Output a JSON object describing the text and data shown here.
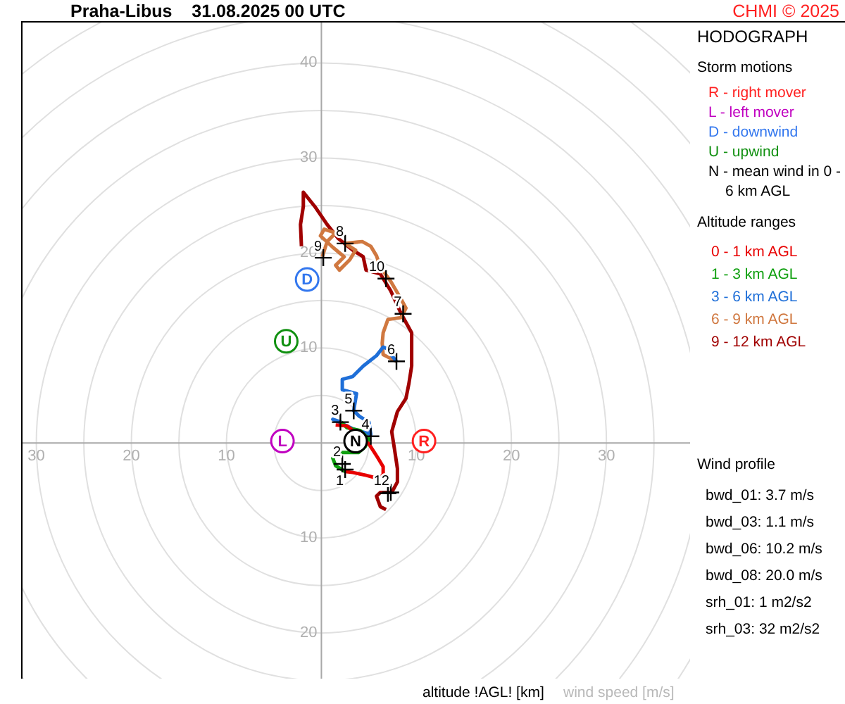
{
  "chart_data": {
    "type": "line",
    "title": "Praha-Libus    31.08.2025 00 UTC",
    "subtitle": "HODOGRAPH",
    "xlabel": "wind speed [m/s]",
    "annotations": [
      "CHMI © 2025",
      "Storm motions",
      "Altitude ranges",
      "Wind profile",
      "bwd_01: 3.7 m/s",
      "bwd_03: 1.1 m/s",
      "bwd_06: 10.2 m/s",
      "bwd_08: 20.0 m/s",
      "srh_01: 1 m2/s2",
      "srh_03: 32 m2/s2",
      "altitude !AGL! [km]",
      {
        "text": "R",
        "x": 10.8,
        "y": 0.2
      },
      {
        "text": "L",
        "x": -4.1,
        "y": 0.2
      },
      {
        "text": "D",
        "x": -1.5,
        "y": 17.2
      },
      {
        "text": "U",
        "x": -3.7,
        "y": 10.7
      },
      {
        "text": "N",
        "x": 3.6,
        "y": 0.2
      },
      {
        "text": "1",
        "x": 2.5,
        "y": -2.8
      },
      {
        "text": "2",
        "x": 2.2,
        "y": -2.2
      },
      {
        "text": "3",
        "x": 2.0,
        "y": 2.2
      },
      {
        "text": "4",
        "x": 5.2,
        "y": 0.7
      },
      {
        "text": "5",
        "x": 3.4,
        "y": 3.4
      },
      {
        "text": "6",
        "x": 7.9,
        "y": 8.6
      },
      {
        "text": "7",
        "x": 8.6,
        "y": 13.6
      },
      {
        "text": "8",
        "x": 2.5,
        "y": 21.0
      },
      {
        "text": "9",
        "x": 0.2,
        "y": 19.5
      },
      {
        "text": "10",
        "x": 6.8,
        "y": 17.3
      },
      {
        "text": "12",
        "x": 7.3,
        "y": -5.2
      }
    ],
    "xlim": [
      -31.6,
      38.8
    ],
    "ylim": [
      -24.8,
      44.4
    ],
    "xticks": [
      {
        "value": -30,
        "label": "30"
      },
      {
        "value": -20,
        "label": "20"
      },
      {
        "value": -10,
        "label": "10"
      },
      10,
      20,
      30
    ],
    "yticks": [
      {
        "value": -20,
        "label": "20"
      },
      {
        "value": -10,
        "label": "10"
      },
      10,
      20,
      30,
      40
    ],
    "legend": "right",
    "series": [
      {
        "type": "scatter",
        "name": "R - right mover",
        "color": "#ff2020",
        "marker": "circle",
        "x": [
          10.8
        ],
        "values": [
          0.2
        ]
      },
      {
        "type": "scatter",
        "name": "L - left mover",
        "color": "#c000c0",
        "marker": "circle",
        "x": [
          -4.1
        ],
        "values": [
          0.2
        ]
      },
      {
        "type": "scatter",
        "name": "D - downwind",
        "color": "#3377ee",
        "marker": "circle",
        "x": [
          -1.5
        ],
        "values": [
          17.2
        ]
      },
      {
        "type": "scatter",
        "name": "U - upwind",
        "color": "#109010",
        "marker": "circle",
        "x": [
          -3.7
        ],
        "values": [
          10.7
        ]
      },
      {
        "type": "scatter",
        "name": "N - mean wind in 0 - 6 km AGL",
        "color": "#000000",
        "marker": "circle",
        "x": [
          3.6
        ],
        "values": [
          0.2
        ]
      },
      {
        "name": "0 - 1 km AGL",
        "color": "#e80000",
        "x": [
          1.5,
          2.7,
          5.0,
          5.9,
          6.5,
          6.5,
          5.8,
          4.7,
          3.3,
          2.5
        ],
        "values": [
          1.9,
          1.8,
          -0.1,
          -1.5,
          -2.5,
          -3.4,
          -3.7,
          -3.4,
          -3.1,
          -3.0
        ]
      },
      {
        "name": "1 - 3 km AGL",
        "color": "#10a010",
        "x": [
          2.5,
          1.5,
          1.2,
          1.8,
          2.8,
          3.9,
          4.6,
          5.0,
          4.1,
          2.7,
          2.1
        ],
        "values": [
          -3.0,
          -2.4,
          -1.6,
          -1.0,
          -1.0,
          -1.0,
          -0.4,
          0.4,
          1.3,
          1.6,
          2.2
        ]
      },
      {
        "name": "3 - 6 km AGL",
        "color": "#1f6fd8",
        "x": [
          2.1,
          1.2,
          3.3,
          5.2,
          5.0,
          4.0,
          3.4,
          3.6,
          3.7,
          2.2,
          2.2,
          3.3,
          4.4,
          5.8,
          6.5,
          7.0,
          7.4,
          7.9
        ],
        "values": [
          2.2,
          2.5,
          1.5,
          0.9,
          2.2,
          2.8,
          3.4,
          4.6,
          5.2,
          5.6,
          6.7,
          7.0,
          8.1,
          9.2,
          10.1,
          9.9,
          9.2,
          8.6
        ]
      },
      {
        "name": "6 - 9 km AGL",
        "color": "#d07840",
        "x": [
          7.9,
          6.5,
          6.4,
          6.5,
          7.0,
          8.4,
          8.9,
          8.3,
          7.3,
          6.2,
          5.8,
          5.2,
          4.3,
          2.5,
          3.6,
          3.0,
          1.9,
          1.5,
          2.4,
          1.2,
          -0.1,
          0.3,
          1.5,
          0.6,
          0.1
        ],
        "values": [
          8.6,
          9.3,
          10.5,
          11.6,
          13.0,
          13.2,
          14.2,
          15.3,
          17.0,
          18.5,
          19.7,
          20.7,
          21.2,
          21.0,
          20.3,
          19.3,
          18.2,
          18.7,
          19.6,
          20.6,
          21.8,
          22.5,
          22.1,
          21.2,
          19.6
        ]
      },
      {
        "name": "9 - 12 km AGL",
        "color": "#a00000",
        "x": [
          -2.1,
          -2.2,
          -1.9,
          -1.9,
          -0.7,
          0.6,
          1.8,
          3.3,
          4.4,
          4.7,
          6.2,
          7.3,
          8.4,
          9.5,
          9.5,
          9.2,
          8.9,
          8.0,
          7.4,
          7.7,
          8.0,
          8.0,
          7.4,
          6.2,
          5.8,
          6.2,
          6.8
        ],
        "values": [
          20.7,
          23.0,
          24.9,
          26.4,
          24.9,
          23.0,
          21.5,
          20.3,
          19.6,
          18.2,
          17.8,
          16.0,
          13.6,
          11.6,
          8.1,
          6.2,
          4.7,
          3.3,
          1.2,
          -0.7,
          -2.7,
          -4.1,
          -5.2,
          -5.2,
          -5.6,
          -6.7,
          -7.0
        ]
      },
      {
        "type": "scatter",
        "color": "#000000",
        "marker": "cross",
        "x": [
          2.5,
          2.2,
          2.0,
          5.2,
          3.4,
          7.9,
          8.6,
          2.5,
          0.2,
          6.8,
          7.0,
          7.3
        ],
        "values": [
          -2.8,
          -2.2,
          2.2,
          0.7,
          3.4,
          8.6,
          13.6,
          21.0,
          19.5,
          17.3,
          -5.3,
          -5.2
        ]
      }
    ]
  }
}
